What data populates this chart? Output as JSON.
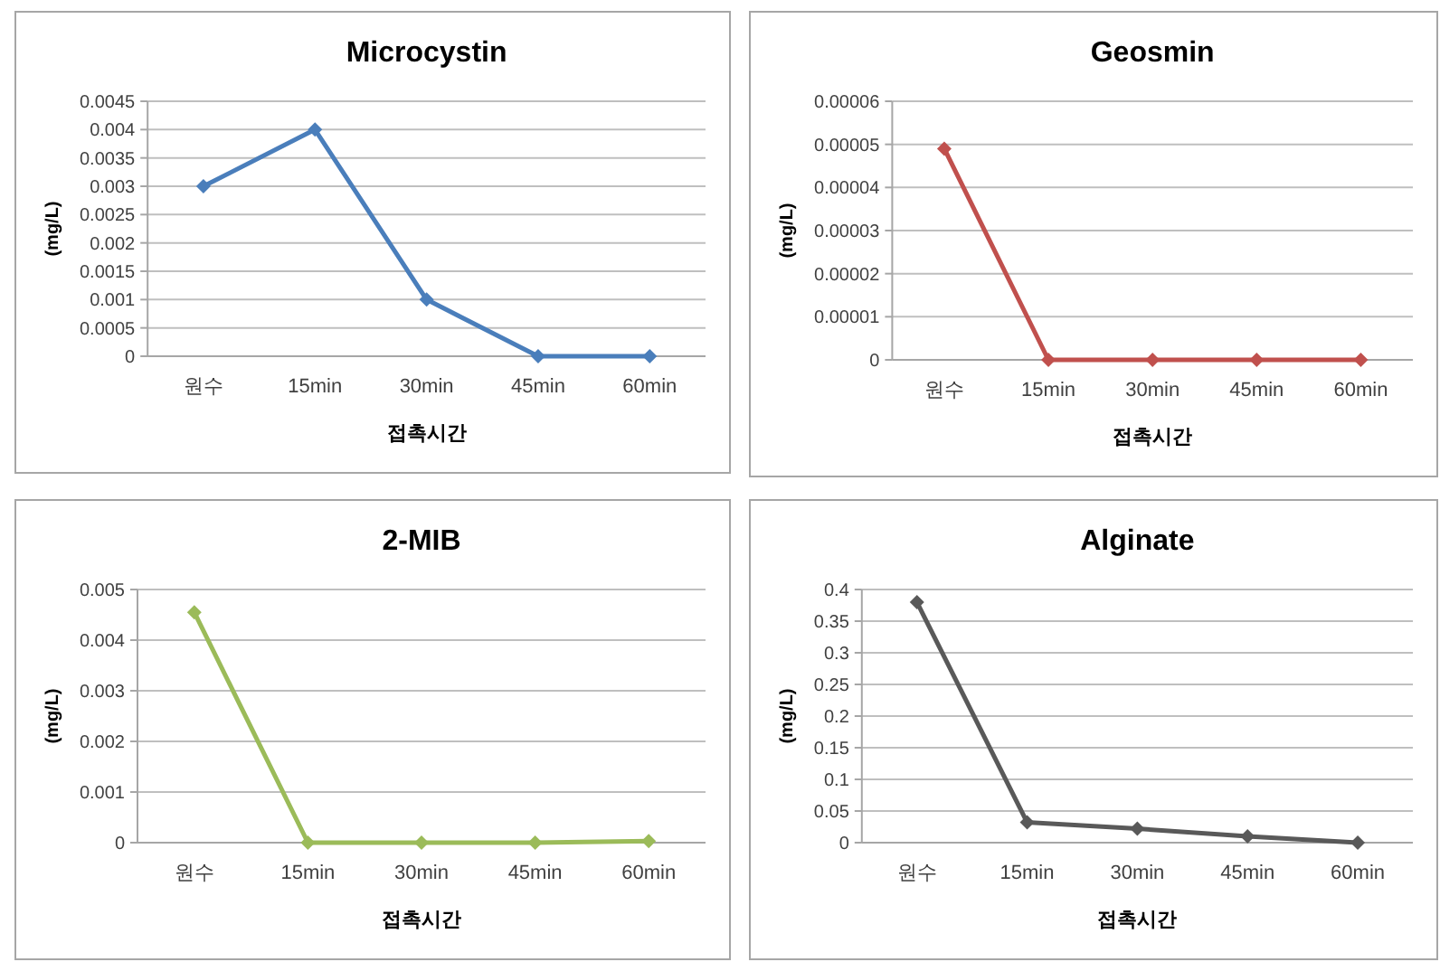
{
  "chart_data": [
    {
      "type": "line",
      "title": "Microcystin",
      "ylabel": "(mg/L)",
      "xlabel": "접촉시간",
      "categories": [
        "원수",
        "15min",
        "30min",
        "45min",
        "60min"
      ],
      "grid": "y",
      "marker": "diamond",
      "ylim": [
        0,
        0.0045
      ],
      "yticks": [
        0,
        0.0005,
        0.001,
        0.0015,
        0.002,
        0.0025,
        0.003,
        0.0035,
        0.004,
        0.0045
      ],
      "series": [
        {
          "color": "#4a7ebb",
          "values": [
            0.003,
            0.004,
            0.001,
            0,
            0
          ]
        }
      ]
    },
    {
      "type": "line",
      "title": "Geosmin",
      "ylabel": "(mg/L)",
      "xlabel": "접촉시간",
      "categories": [
        "원수",
        "15min",
        "30min",
        "45min",
        "60min"
      ],
      "grid": "y",
      "marker": "diamond",
      "ylim": [
        0,
        6e-05
      ],
      "yticks": [
        0,
        {
          "value": 1e-05,
          "label": "0.00001"
        },
        {
          "value": 2e-05,
          "label": "0.00002"
        },
        {
          "value": 3e-05,
          "label": "0.00003"
        },
        {
          "value": 4e-05,
          "label": "0.00004"
        },
        {
          "value": 5e-05,
          "label": "0.00005"
        },
        {
          "value": 6e-05,
          "label": "0.00006"
        }
      ],
      "series": [
        {
          "color": "#c0504d",
          "values": [
            4.9e-05,
            0,
            0,
            0,
            0
          ]
        }
      ]
    },
    {
      "type": "line",
      "title": "2-MIB",
      "ylabel": "(mg/L)",
      "xlabel": "접촉시간",
      "categories": [
        "원수",
        "15min",
        "30min",
        "45min",
        "60min"
      ],
      "grid": "y",
      "marker": "diamond",
      "ylim": [
        0,
        0.005
      ],
      "yticks": [
        0,
        0.001,
        0.002,
        0.003,
        0.004,
        0.005
      ],
      "series": [
        {
          "color": "#9bbb59",
          "values": [
            0.00455,
            0,
            0,
            0,
            3e-05
          ]
        }
      ]
    },
    {
      "type": "line",
      "title": "Alginate",
      "ylabel": "(mg/L)",
      "xlabel": "접촉시간",
      "categories": [
        "원수",
        "15min",
        "30min",
        "45min",
        "60min"
      ],
      "grid": "y",
      "marker": "diamond",
      "ylim": [
        0,
        0.4
      ],
      "yticks": [
        0,
        0.05,
        0.1,
        0.15,
        0.2,
        0.25,
        0.3,
        0.35,
        0.4
      ],
      "series": [
        {
          "color": "#595959",
          "values": [
            0.38,
            0.032,
            0.022,
            0.01,
            0
          ]
        }
      ]
    }
  ]
}
